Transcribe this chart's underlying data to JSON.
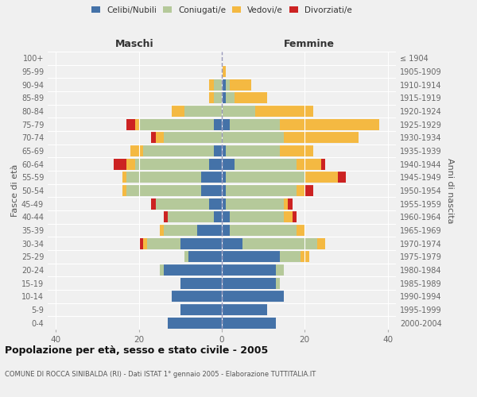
{
  "age_groups": [
    "100+",
    "95-99",
    "90-94",
    "85-89",
    "80-84",
    "75-79",
    "70-74",
    "65-69",
    "60-64",
    "55-59",
    "50-54",
    "45-49",
    "40-44",
    "35-39",
    "30-34",
    "25-29",
    "20-24",
    "15-19",
    "10-14",
    "5-9",
    "0-4"
  ],
  "birth_years": [
    "≤ 1904",
    "1905-1909",
    "1910-1914",
    "1915-1919",
    "1920-1924",
    "1925-1929",
    "1930-1934",
    "1935-1939",
    "1940-1944",
    "1945-1949",
    "1950-1954",
    "1955-1959",
    "1960-1964",
    "1965-1969",
    "1970-1974",
    "1975-1979",
    "1980-1984",
    "1985-1989",
    "1990-1994",
    "1995-1999",
    "2000-2004"
  ],
  "maschi": {
    "celibi": [
      0,
      0,
      0,
      0,
      0,
      2,
      0,
      2,
      3,
      5,
      5,
      3,
      2,
      6,
      10,
      8,
      14,
      10,
      12,
      10,
      13
    ],
    "coniugati": [
      0,
      0,
      2,
      2,
      9,
      18,
      14,
      17,
      18,
      18,
      18,
      13,
      11,
      8,
      8,
      1,
      1,
      0,
      0,
      0,
      0
    ],
    "vedovi": [
      0,
      0,
      1,
      1,
      3,
      1,
      2,
      3,
      2,
      1,
      1,
      0,
      0,
      1,
      1,
      0,
      0,
      0,
      0,
      0,
      0
    ],
    "divorziati": [
      0,
      0,
      0,
      0,
      0,
      2,
      1,
      0,
      3,
      0,
      0,
      1,
      1,
      0,
      1,
      0,
      0,
      0,
      0,
      0,
      0
    ]
  },
  "femmine": {
    "nubili": [
      0,
      0,
      1,
      1,
      0,
      2,
      0,
      1,
      3,
      1,
      1,
      1,
      2,
      2,
      5,
      14,
      13,
      13,
      15,
      11,
      13
    ],
    "coniugate": [
      0,
      0,
      1,
      2,
      8,
      12,
      15,
      13,
      15,
      19,
      17,
      14,
      13,
      16,
      18,
      5,
      2,
      1,
      0,
      0,
      0
    ],
    "vedove": [
      0,
      1,
      5,
      8,
      14,
      24,
      18,
      8,
      6,
      8,
      2,
      1,
      2,
      2,
      2,
      2,
      0,
      0,
      0,
      0,
      0
    ],
    "divorziate": [
      0,
      0,
      0,
      0,
      0,
      0,
      0,
      0,
      1,
      2,
      2,
      1,
      1,
      0,
      0,
      0,
      0,
      0,
      0,
      0,
      0
    ]
  },
  "colors": {
    "celibi_nubili": "#4472a8",
    "coniugati": "#b5c99a",
    "vedovi": "#f4b942",
    "divorziati": "#cc2222"
  },
  "title": "Popolazione per età, sesso e stato civile - 2005",
  "subtitle": "COMUNE DI ROCCA SINIBALDA (RI) - Dati ISTAT 1° gennaio 2005 - Elaborazione TUTTITALIA.IT",
  "xlabel_left": "Maschi",
  "xlabel_right": "Femmine",
  "ylabel_left": "Fasce di età",
  "ylabel_right": "Anni di nascita",
  "xlim": 42,
  "background_color": "#f0f0f0"
}
